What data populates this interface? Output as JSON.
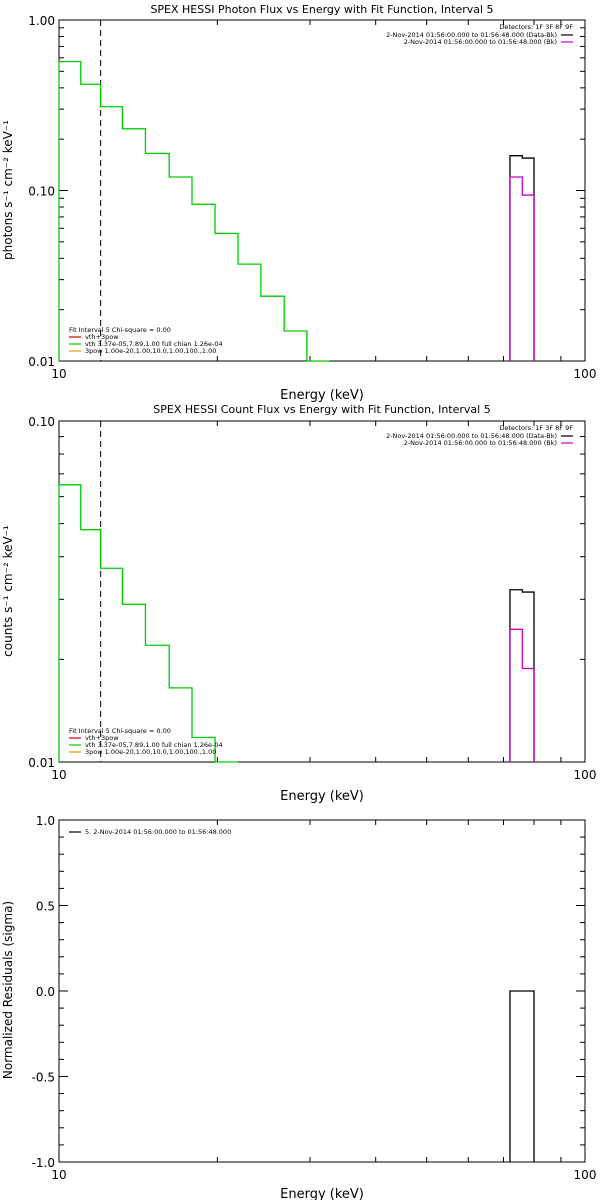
{
  "chart_data": [
    {
      "type": "line",
      "title": "SPEX HESSI Photon Flux vs Energy with Fit Function, Interval 5",
      "xlabel": "Energy (keV)",
      "ylabel": "photons s⁻¹ cm⁻² keV⁻¹",
      "xscale": "log",
      "yscale": "log",
      "xlim": [
        10,
        100
      ],
      "ylim": [
        0.01,
        1.0
      ],
      "xticks": [
        "10",
        "100"
      ],
      "yticks": [
        {
          "value": 1.0,
          "label": "1.00"
        },
        {
          "value": 0.1,
          "label": "0.10"
        },
        {
          "value": 0.01,
          "label": "0.01"
        }
      ],
      "dashed_line_x": 12.0,
      "legend_top": {
        "header": "Detectors: 1F 3F 8F 9F",
        "entries": [
          {
            "text": "2-Nov-2014 01:56:00.000 to 01:56:48.000 (Data-Bk)",
            "color": "#000000"
          },
          {
            "text": "2-Nov-2014 01:56:00.000 to 01:56:48.000 (Bk)",
            "color": "#cc00cc"
          }
        ]
      },
      "legend_bottom": {
        "header": "Fit Interval 5   Chi-square = 0.00",
        "entries": [
          {
            "text": "vth+3pow",
            "color": "#cc0000"
          },
          {
            "text": "vth 3.37e-05,7.89,1.00  full chian 1.26e-04",
            "color": "#00cc00"
          },
          {
            "text": "3pow 1.00e-20,1.00,10.0,1.00,100.,1.00",
            "color": "#e0a000"
          }
        ]
      },
      "series": [
        {
          "color": "#00cc00",
          "edges": [
            10,
            11,
            12,
            13.2,
            14.6,
            16.2,
            17.9,
            19.8,
            21.9,
            24.2,
            26.8,
            29.6,
            32.7
          ],
          "values": [
            0.57,
            0.42,
            0.31,
            0.23,
            0.165,
            0.12,
            0.083,
            0.056,
            0.037,
            0.024,
            0.015,
            0.0095
          ]
        },
        {
          "color": "#000000",
          "edges": [
            72,
            76,
            80
          ],
          "values": [
            0.16,
            0.155
          ]
        },
        {
          "color": "#cc00cc",
          "edges": [
            72,
            76,
            80
          ],
          "values": [
            0.12,
            0.094
          ]
        }
      ]
    },
    {
      "type": "line",
      "title": "SPEX HESSI Count Flux vs Energy with Fit Function, Interval 5",
      "xlabel": "Energy (keV)",
      "ylabel": "counts s⁻¹ cm⁻² keV⁻¹",
      "xscale": "log",
      "yscale": "log",
      "xlim": [
        10,
        100
      ],
      "ylim": [
        0.01,
        0.1
      ],
      "xticks": [
        "10",
        "100"
      ],
      "yticks": [
        {
          "value": 0.1,
          "label": "0.10"
        },
        {
          "value": 0.01,
          "label": "0.01"
        }
      ],
      "dashed_line_x": 12.0,
      "legend_top": {
        "header": "Detectors: 1F 3F 8F 9F",
        "entries": [
          {
            "text": "2-Nov-2014 01:56:00.000 to 01:56:48.000 (Data-Bk)",
            "color": "#000000"
          },
          {
            "text": "2-Nov-2014 01:56:00.000 to 01:56:48.000 (Bk)",
            "color": "#cc00cc"
          }
        ]
      },
      "legend_bottom": {
        "header": "Fit Interval 5   Chi-square = 0.00",
        "entries": [
          {
            "text": "vth+3pow",
            "color": "#cc0000"
          },
          {
            "text": "vth 3.37e-05,7.89,1.00  full chian 1.26e-04",
            "color": "#00cc00"
          },
          {
            "text": "3pow 1.00e-20,1.00,10.0,1.00,100.,1.00",
            "color": "#e0a000"
          }
        ]
      },
      "series": [
        {
          "color": "#00cc00",
          "edges": [
            10,
            11,
            12,
            13.2,
            14.6,
            16.2,
            17.9,
            19.8,
            21.9
          ],
          "values": [
            0.065,
            0.048,
            0.037,
            0.029,
            0.022,
            0.0165,
            0.0118,
            0.0095
          ]
        },
        {
          "color": "#000000",
          "edges": [
            72,
            76,
            80
          ],
          "values": [
            0.032,
            0.0315
          ]
        },
        {
          "color": "#cc00cc",
          "edges": [
            72,
            76,
            80
          ],
          "values": [
            0.0245,
            0.0188
          ]
        }
      ]
    },
    {
      "type": "line",
      "title": "",
      "xlabel": "Energy (keV)",
      "ylabel": "Normalized Residuals (sigma)",
      "xscale": "log",
      "yscale": "linear",
      "xlim": [
        10,
        100
      ],
      "ylim": [
        -1.0,
        1.0
      ],
      "xticks": [
        "10",
        "100"
      ],
      "yticks": [
        {
          "value": 1.0,
          "label": "1.0"
        },
        {
          "value": 0.5,
          "label": "0.5"
        },
        {
          "value": 0.0,
          "label": "0.0"
        },
        {
          "value": -0.5,
          "label": "-0.5"
        },
        {
          "value": -1.0,
          "label": "-1.0"
        }
      ],
      "legend_top": {
        "header": "",
        "entries": [
          {
            "text": "5. 2-Nov-2014 01:56:00.000 to 01:56:48.000",
            "color": "#000000"
          }
        ]
      },
      "series": [
        {
          "color": "#000000",
          "edges": [
            72,
            80
          ],
          "values": [
            0.0
          ]
        }
      ]
    }
  ]
}
